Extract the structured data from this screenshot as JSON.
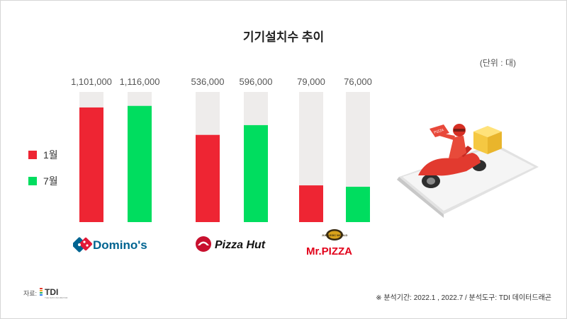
{
  "chart_data": {
    "type": "bar",
    "title": "기기설치수 추이",
    "unit_note": "(단위 : 대)",
    "categories": [
      "Domino's",
      "Pizza Hut",
      "Mr.PIZZA"
    ],
    "series": [
      {
        "name": "1월",
        "color": "#ee2533",
        "values": [
          1101000,
          536000,
          79000
        ],
        "labels": [
          "1,101,000",
          "536,000",
          "79,000"
        ]
      },
      {
        "name": "7월",
        "color": "#00dd5f",
        "values": [
          1116000,
          596000,
          76000
        ],
        "labels": [
          "1,116,000",
          "596,000",
          "76,000"
        ]
      }
    ],
    "track_color": "#eeeceb",
    "axis_max_by_brand": [
      1250000,
      800000,
      280000
    ]
  },
  "logos": {
    "dominos": "Domino's",
    "pizzahut": "Pizza Hut",
    "mrpizza": "Mr.PIZZA",
    "mrpizza_badge": "JURASSIC WORLD"
  },
  "illustration": {
    "icon": "delivery-scooter-on-smartphone",
    "box_label": "PIZZA"
  },
  "source": {
    "label": "자료:",
    "logo_text": "TDI",
    "logo_subtitle": "THE DATA INCUBATOR"
  },
  "footnote": "※ 분석기간: 2022.1 , 2022.7  / 분석도구: TDI 데이터드래곤"
}
